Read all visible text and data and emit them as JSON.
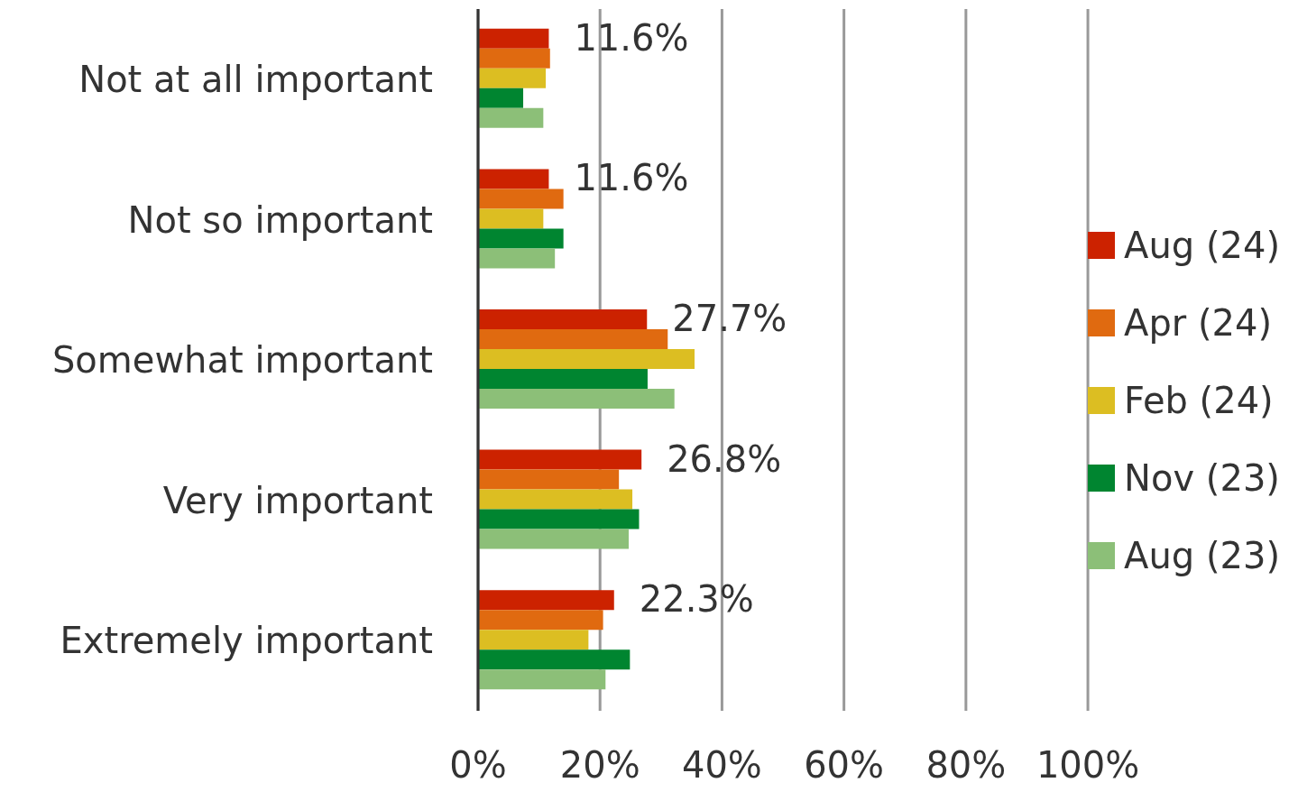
{
  "chart_data": {
    "type": "bar",
    "orientation": "horizontal",
    "categories": [
      "Not at all important",
      "Not so important",
      "Somewhat important",
      "Very important",
      "Extremely important"
    ],
    "series": [
      {
        "name": "Aug (24)",
        "color": "#cc2200",
        "values": [
          11.6,
          11.6,
          27.7,
          26.8,
          22.3
        ],
        "value_labels": [
          "11.6%",
          "11.6%",
          "27.7%",
          "26.8%",
          "22.3%"
        ]
      },
      {
        "name": "Apr (24)",
        "color": "#e06a10",
        "values": [
          11.8,
          14.0,
          31.1,
          23.1,
          20.5
        ]
      },
      {
        "name": "Feb (24)",
        "color": "#dcbe22",
        "values": [
          11.1,
          10.7,
          35.5,
          25.3,
          18.1
        ]
      },
      {
        "name": "Nov (23)",
        "color": "#008530",
        "values": [
          7.4,
          14.0,
          27.8,
          26.4,
          24.9
        ]
      },
      {
        "name": "Aug (23)",
        "color": "#8cbf78",
        "values": [
          10.7,
          12.6,
          32.2,
          24.7,
          20.9
        ]
      }
    ],
    "xlim": [
      0,
      100
    ],
    "xticks": [
      {
        "value": 0,
        "label": "0%"
      },
      {
        "value": 20,
        "label": "20%"
      },
      {
        "value": 40,
        "label": "40%"
      },
      {
        "value": 60,
        "label": "60%"
      },
      {
        "value": 80,
        "label": "80%"
      },
      {
        "value": 100,
        "label": "100%"
      }
    ],
    "grid": "x",
    "legend": "right"
  }
}
